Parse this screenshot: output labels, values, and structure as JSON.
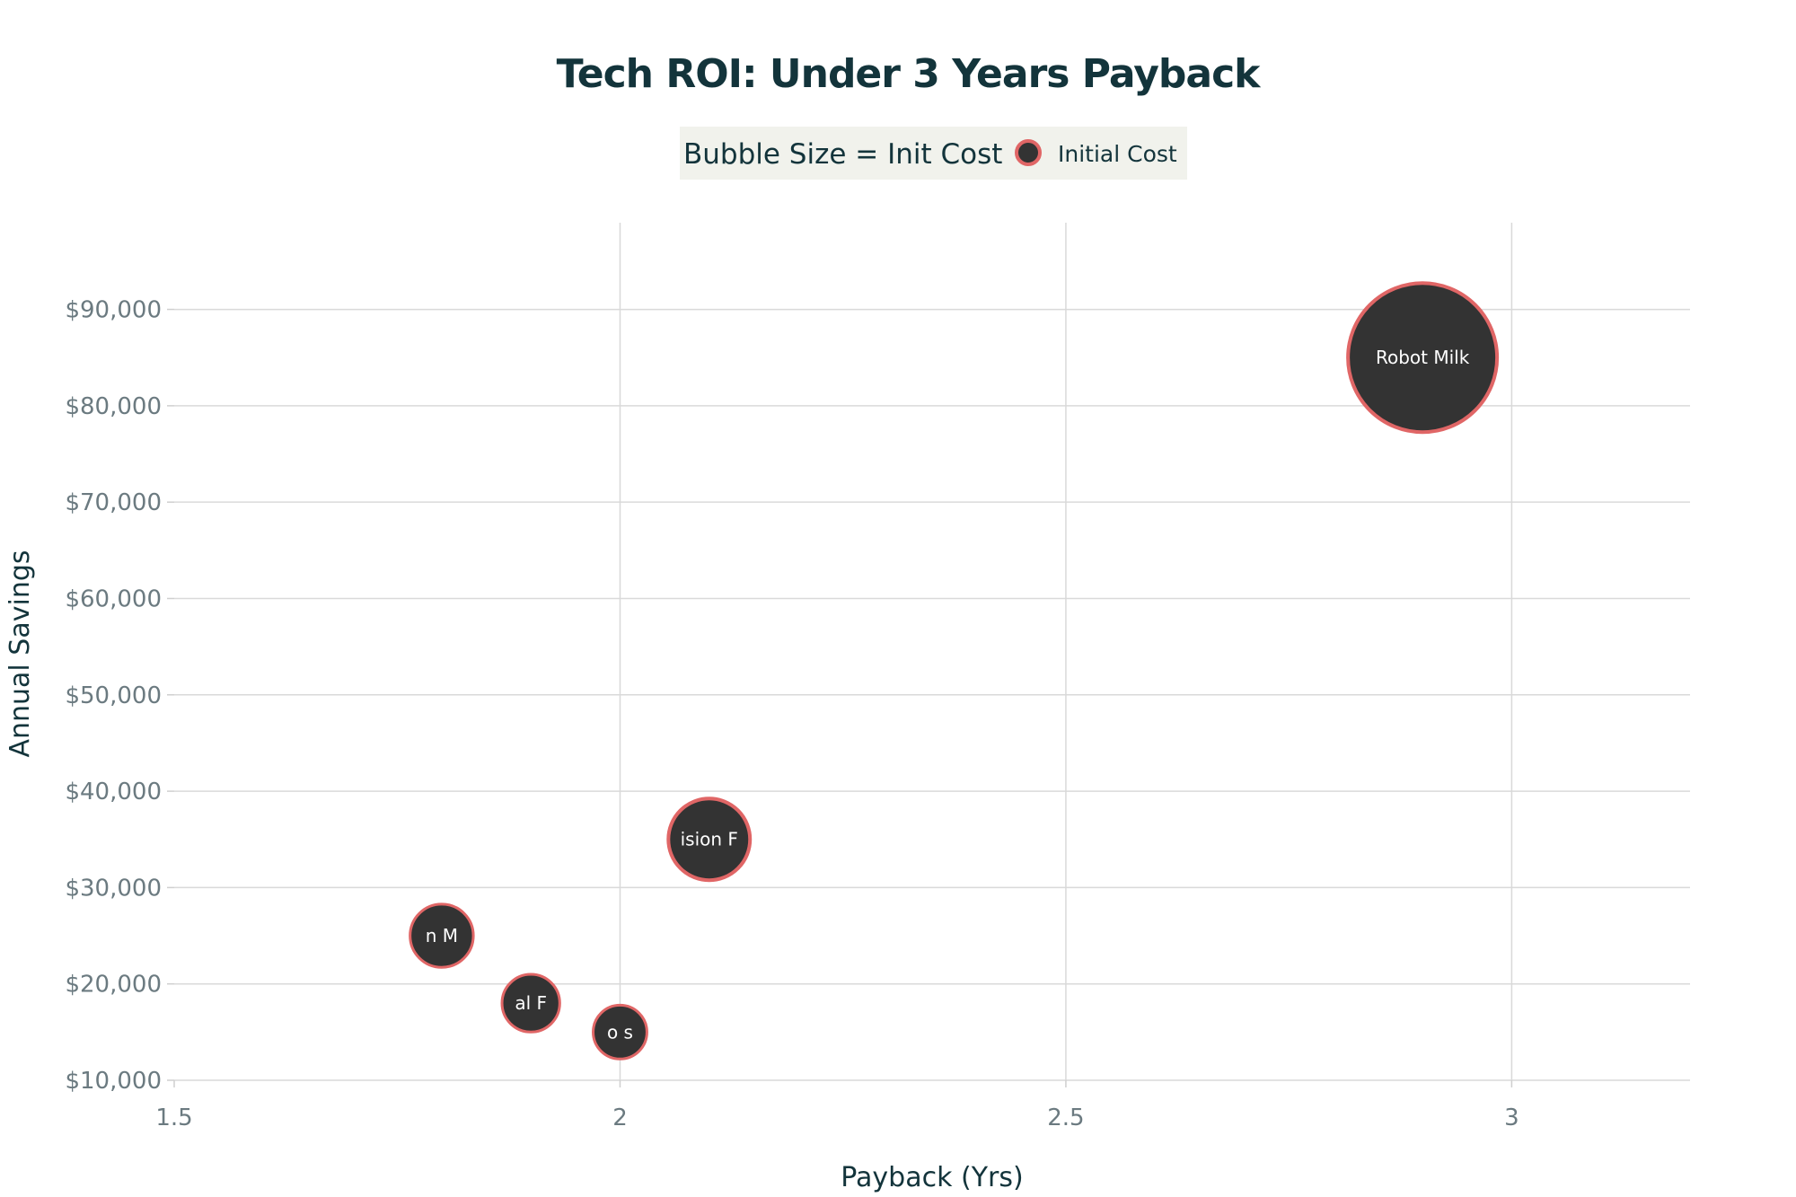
{
  "chart_data": {
    "type": "scatter",
    "title": "Tech ROI: Under 3 Years Payback",
    "xlabel": "Payback (Yrs)",
    "ylabel": "Annual Savings",
    "xlim": [
      1.5,
      3.2
    ],
    "ylim": [
      10000,
      99000
    ],
    "x_ticks": [
      1.5,
      2,
      2.5,
      3
    ],
    "x_tick_labels": [
      "1.5",
      "2",
      "2.5",
      "3"
    ],
    "y_ticks": [
      10000,
      20000,
      30000,
      40000,
      50000,
      60000,
      70000,
      80000,
      90000
    ],
    "y_tick_labels": [
      "$10,000",
      "$20,000",
      "$30,000",
      "$40,000",
      "$50,000",
      "$60,000",
      "$70,000",
      "$80,000",
      "$90,000"
    ],
    "grid": true,
    "legend": {
      "title": "Bubble Size = Init Cost",
      "placement": "top-center",
      "entries": [
        "Initial Cost"
      ]
    },
    "marker_color": "#333333",
    "marker_outline_color": "#e06666",
    "series": [
      {
        "name": "Initial Cost",
        "points": [
          {
            "x": 2.9,
            "y": 85000,
            "label": "Robot Milk",
            "visible_label": "Robot Milk",
            "size_rel": 1.0
          },
          {
            "x": 2.1,
            "y": 35000,
            "label": "ision F",
            "visible_label": "ision F",
            "size_rel": 0.3
          },
          {
            "x": 1.8,
            "y": 25000,
            "label": "n M",
            "visible_label": "n M",
            "size_rel": 0.18
          },
          {
            "x": 1.9,
            "y": 18000,
            "label": "al F",
            "visible_label": "al F",
            "size_rel": 0.15
          },
          {
            "x": 2.0,
            "y": 15000,
            "label": "o s",
            "visible_label": "o s",
            "size_rel": 0.13
          }
        ]
      }
    ]
  },
  "colors": {
    "title": "#13343b",
    "tick": "#6b7a80",
    "legend_bg": "#f1f2ec",
    "grid": "#d9d9d9"
  }
}
